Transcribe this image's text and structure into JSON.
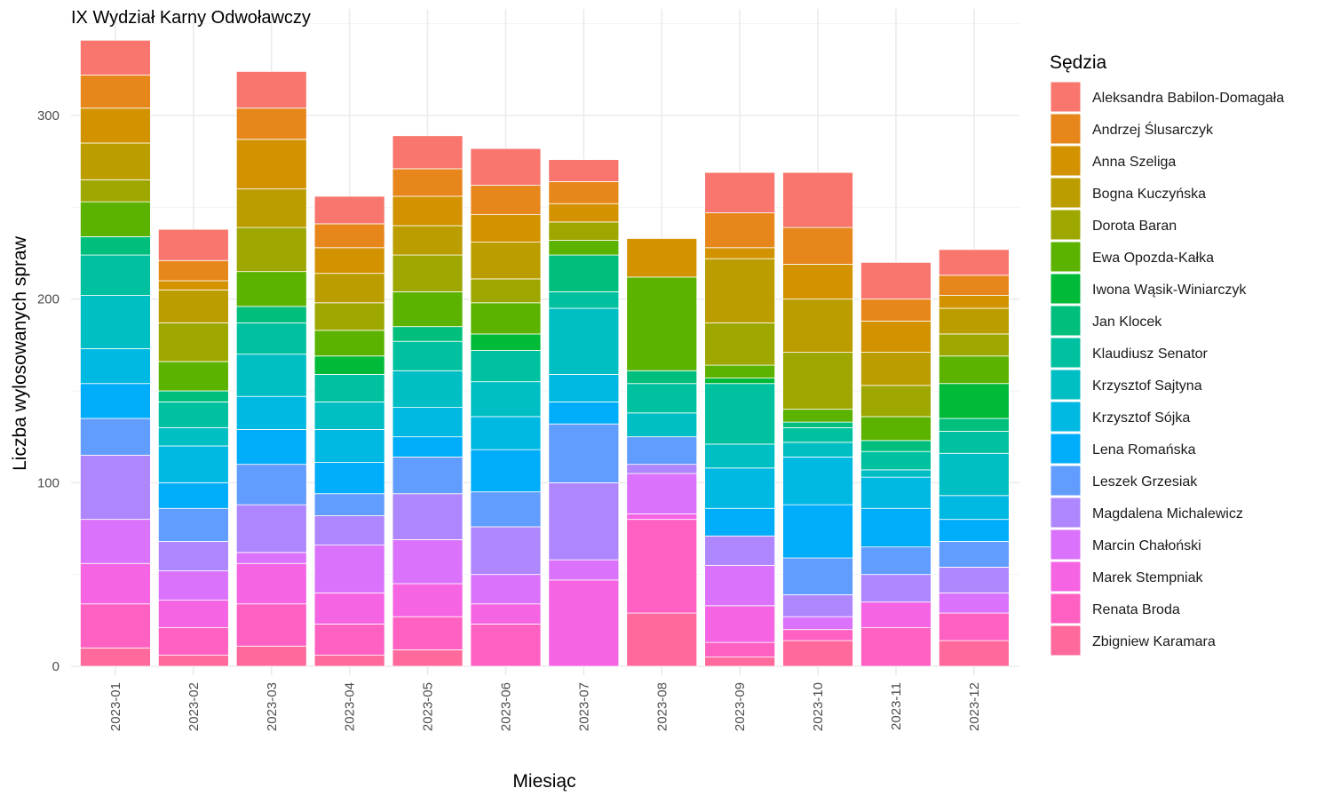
{
  "chart_data": {
    "type": "bar",
    "stacked": true,
    "title": "IX Wydział Karny Odwoławczy",
    "xlabel": "Miesiąc",
    "ylabel": "Liczba wylosowanych spraw",
    "ylim": [
      0,
      340
    ],
    "yticks": [
      0,
      100,
      200,
      300
    ],
    "grid": true,
    "legend_title": "Sędzia",
    "legend_position": "right",
    "categories": [
      "2023-01",
      "2023-02",
      "2023-03",
      "2023-04",
      "2023-05",
      "2023-06",
      "2023-07",
      "2023-08",
      "2023-09",
      "2023-10",
      "2023-11",
      "2023-12"
    ],
    "series": [
      {
        "name": "Aleksandra Babilon-Domagała",
        "color": "#F8766D",
        "values": [
          19,
          17,
          20,
          15,
          18,
          20,
          12,
          0,
          22,
          30,
          20,
          14
        ]
      },
      {
        "name": "Andrzej Ślusarczyk",
        "color": "#E7861B",
        "values": [
          18,
          11,
          17,
          13,
          15,
          16,
          12,
          0,
          19,
          20,
          12,
          11
        ]
      },
      {
        "name": "Anna Szeliga",
        "color": "#D39200",
        "values": [
          19,
          5,
          27,
          14,
          16,
          15,
          10,
          21,
          6,
          19,
          17,
          7
        ]
      },
      {
        "name": "Bogna Kuczyńska",
        "color": "#BB9D00",
        "values": [
          20,
          18,
          21,
          16,
          16,
          20,
          0,
          0,
          35,
          29,
          18,
          14
        ]
      },
      {
        "name": "Dorota Baran",
        "color": "#9EA700",
        "values": [
          12,
          21,
          24,
          15,
          20,
          13,
          10,
          0,
          23,
          31,
          17,
          12
        ]
      },
      {
        "name": "Ewa Opozda-Kałka",
        "color": "#5BB300",
        "values": [
          19,
          16,
          19,
          14,
          19,
          17,
          8,
          51,
          7,
          7,
          13,
          15
        ]
      },
      {
        "name": "Iwona Wąsik-Winiarczyk",
        "color": "#00BA38",
        "values": [
          0,
          0,
          0,
          10,
          0,
          9,
          0,
          0,
          3,
          0,
          0,
          19
        ]
      },
      {
        "name": "Jan Klocek",
        "color": "#00BF7D",
        "values": [
          10,
          6,
          9,
          0,
          8,
          0,
          20,
          7,
          0,
          3,
          6,
          7
        ]
      },
      {
        "name": "Klaudiusz Senator",
        "color": "#00C19F",
        "values": [
          22,
          14,
          17,
          15,
          16,
          17,
          9,
          16,
          33,
          8,
          10,
          12
        ]
      },
      {
        "name": "Krzysztof Sajtyna",
        "color": "#00BFC4",
        "values": [
          29,
          10,
          23,
          15,
          20,
          19,
          36,
          13,
          13,
          8,
          4,
          23
        ]
      },
      {
        "name": "Krzysztof Sójka",
        "color": "#00B9E3",
        "values": [
          19,
          20,
          18,
          18,
          16,
          18,
          15,
          0,
          22,
          26,
          17,
          13
        ]
      },
      {
        "name": "Lena Romańska",
        "color": "#00ADFA",
        "values": [
          19,
          14,
          19,
          17,
          11,
          23,
          12,
          0,
          15,
          29,
          21,
          12
        ]
      },
      {
        "name": "Leszek Grzesiak",
        "color": "#619CFF",
        "values": [
          20,
          18,
          22,
          12,
          20,
          19,
          32,
          15,
          0,
          20,
          15,
          14
        ]
      },
      {
        "name": "Magdalena Michalewicz",
        "color": "#AE87FF",
        "values": [
          35,
          16,
          26,
          16,
          25,
          26,
          42,
          5,
          16,
          12,
          15,
          14
        ]
      },
      {
        "name": "Marcin Chałoński",
        "color": "#DB72FB",
        "values": [
          24,
          16,
          6,
          26,
          24,
          16,
          11,
          22,
          22,
          7,
          0,
          11
        ]
      },
      {
        "name": "Marek Stempniak",
        "color": "#F564E3",
        "values": [
          22,
          15,
          22,
          17,
          18,
          11,
          47,
          3,
          20,
          0,
          14,
          0
        ]
      },
      {
        "name": "Renata Broda",
        "color": "#FF61C3",
        "values": [
          24,
          15,
          23,
          17,
          18,
          23,
          0,
          51,
          8,
          6,
          21,
          15
        ]
      },
      {
        "name": "Zbigniew Karamara",
        "color": "#FF699C",
        "values": [
          10,
          6,
          11,
          6,
          9,
          0,
          0,
          29,
          5,
          14,
          0,
          14
        ]
      }
    ]
  }
}
